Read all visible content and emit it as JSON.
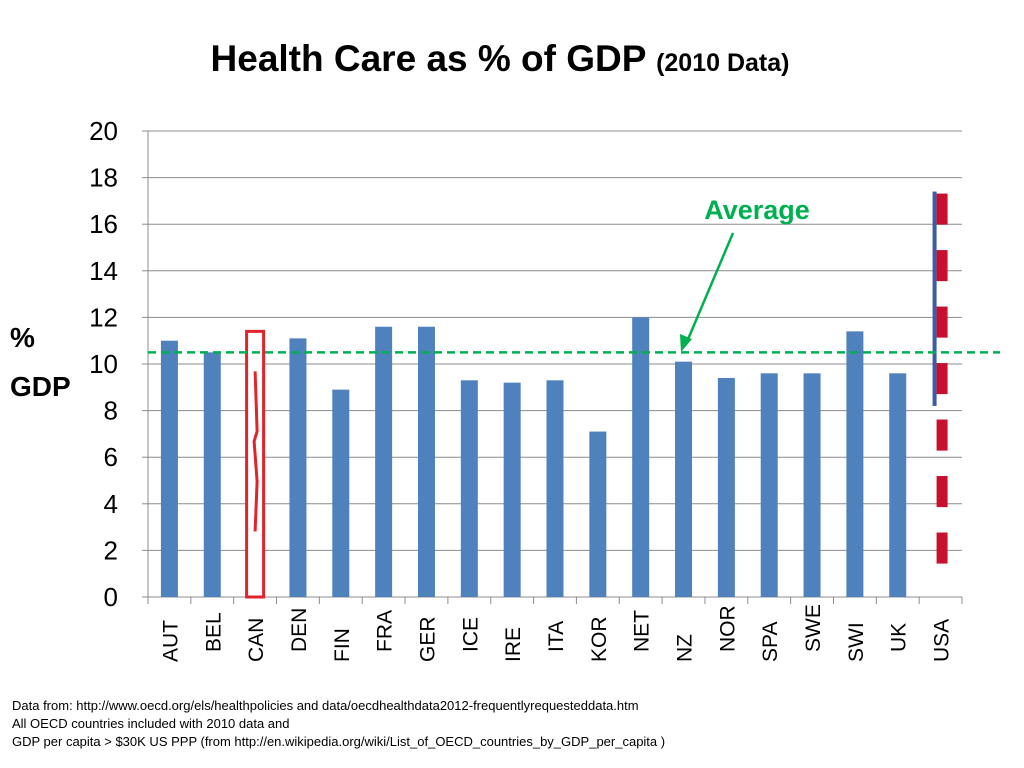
{
  "chart_data": {
    "type": "bar",
    "title": "Health Care as % of GDP",
    "subtitle": "(2010 Data)",
    "ylabel_line1": "%",
    "ylabel_line2": "GDP",
    "xlabel": "",
    "ylim": [
      0,
      20
    ],
    "yticks": [
      0,
      2,
      4,
      6,
      8,
      10,
      12,
      14,
      16,
      18,
      20
    ],
    "grid": true,
    "categories": [
      "AUT",
      "BEL",
      "CAN",
      "DEN",
      "FIN",
      "FRA",
      "GER",
      "ICE",
      "IRE",
      "ITA",
      "KOR",
      "NET",
      "NZ",
      "NOR",
      "SPA",
      "SWE",
      "SWI",
      "UK",
      "USA"
    ],
    "values": [
      11.0,
      10.5,
      11.4,
      11.1,
      8.9,
      11.6,
      11.6,
      9.3,
      9.2,
      9.3,
      7.1,
      12.0,
      10.1,
      9.4,
      9.6,
      9.6,
      11.4,
      9.6,
      17.4
    ],
    "average": 10.5,
    "average_label": "Average",
    "colors": {
      "bar": "#4F81BD",
      "average_line": "#00B050",
      "canada": "#E0242B",
      "usa_red": "#C8102E",
      "usa_blue": "#3B5BA5"
    }
  },
  "notes": [
    "Data from: http://www.oecd.org/els/healthpolicies and data/oecdhealthdata2012-frequentlyrequesteddata.htm",
    "All OECD countries included with 2010 data and",
    "GDP per capita > $30K US PPP (from http://en.wikipedia.org/wiki/List_of_OECD_countries_by_GDP_per_capita )"
  ]
}
